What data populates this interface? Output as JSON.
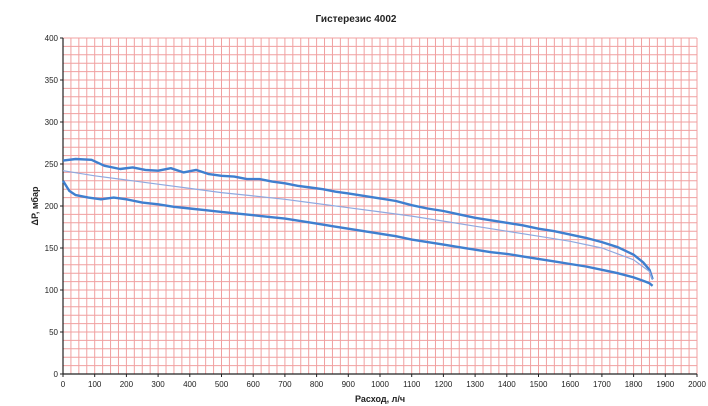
{
  "chart_data": {
    "type": "line",
    "title": "Гистерезис 4002",
    "xlabel": "Расход, л/ч",
    "ylabel": "ΔP, мбар",
    "xlim": [
      0,
      2000
    ],
    "ylim": [
      0,
      400
    ],
    "xticks": [
      0,
      100,
      200,
      300,
      400,
      500,
      600,
      700,
      800,
      900,
      1000,
      1100,
      1200,
      1300,
      1400,
      1500,
      1600,
      1700,
      1800,
      1900,
      2000
    ],
    "yticks": [
      0,
      50,
      100,
      150,
      200,
      250,
      300,
      350,
      400
    ],
    "grid": true,
    "colors": {
      "grid": "#f0a0a0",
      "series_thick": "#3f7fcf",
      "series_thin": "#8fa9e0",
      "axis": "#222222"
    },
    "series": [
      {
        "style": "thick",
        "x": [
          0,
          40,
          90,
          130,
          180,
          220,
          260,
          300,
          340,
          380,
          420,
          460,
          500,
          540,
          580,
          620,
          660,
          700,
          740,
          780,
          820,
          860,
          900,
          950,
          1000,
          1050,
          1100,
          1150,
          1200,
          1250,
          1300,
          1350,
          1400,
          1450,
          1500,
          1550,
          1600,
          1650,
          1700,
          1750,
          1800,
          1830,
          1850,
          1860
        ],
        "y": [
          254,
          256,
          255,
          248,
          244,
          246,
          243,
          242,
          245,
          240,
          243,
          238,
          236,
          235,
          232,
          232,
          229,
          227,
          224,
          222,
          220,
          217,
          215,
          212,
          209,
          206,
          201,
          197,
          194,
          190,
          186,
          183,
          180,
          177,
          173,
          170,
          166,
          162,
          157,
          151,
          142,
          133,
          124,
          113
        ]
      },
      {
        "style": "thick",
        "x": [
          0,
          20,
          40,
          80,
          120,
          160,
          200,
          250,
          300,
          350,
          400,
          450,
          500,
          550,
          600,
          650,
          700,
          750,
          800,
          850,
          900,
          950,
          1000,
          1050,
          1100,
          1150,
          1200,
          1250,
          1300,
          1350,
          1400,
          1450,
          1500,
          1550,
          1600,
          1650,
          1700,
          1750,
          1800,
          1830,
          1850,
          1860
        ],
        "y": [
          230,
          218,
          213,
          210,
          208,
          210,
          208,
          204,
          202,
          199,
          197,
          195,
          193,
          191,
          189,
          187,
          185,
          182,
          179,
          176,
          173,
          170,
          167,
          164,
          160,
          157,
          154,
          151,
          148,
          145,
          143,
          140,
          137,
          134,
          131,
          128,
          124,
          120,
          115,
          111,
          108,
          105
        ]
      },
      {
        "style": "thin",
        "x": [
          0,
          100,
          200,
          300,
          400,
          500,
          600,
          700,
          800,
          900,
          1000,
          1100,
          1200,
          1300,
          1400,
          1500,
          1600,
          1700,
          1800,
          1850,
          1860
        ],
        "y": [
          242,
          236,
          231,
          226,
          221,
          216,
          212,
          208,
          203,
          198,
          193,
          188,
          182,
          176,
          170,
          164,
          158,
          150,
          136,
          122,
          112
        ]
      }
    ]
  }
}
